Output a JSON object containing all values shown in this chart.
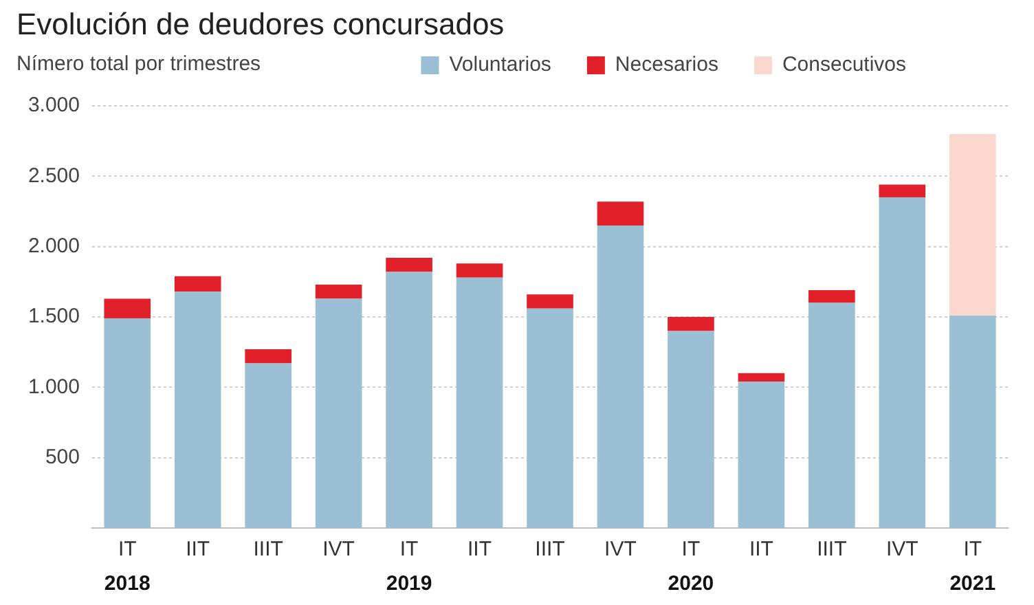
{
  "chart_data": {
    "type": "bar",
    "title": "Evolución de deudores concursados",
    "subtitle": "Nímero total por trimestres",
    "categories": [
      "IT\n2018",
      "IIT",
      "IIIT",
      "IVT",
      "IT\n2019",
      "IIT",
      "IIIT",
      "IVT",
      "IT\n2020",
      "IIT",
      "IIIT",
      "IVT",
      "IT\n2021"
    ],
    "stacked": true,
    "series": [
      {
        "name": "Voluntarios",
        "color": "#9bbfd5",
        "values": [
          1490,
          1680,
          1170,
          1630,
          1820,
          1780,
          1560,
          2150,
          1400,
          1040,
          1600,
          2350,
          1510
        ]
      },
      {
        "name": "Necesarios",
        "color": "#e2202a",
        "values": [
          140,
          110,
          100,
          100,
          100,
          100,
          100,
          170,
          100,
          60,
          90,
          90,
          null
        ]
      },
      {
        "name": "Consecutivos",
        "color": "#fad8cd",
        "values": [
          null,
          null,
          null,
          null,
          null,
          null,
          null,
          null,
          null,
          null,
          null,
          null,
          1290
        ]
      }
    ],
    "ylim": [
      0,
      3000
    ],
    "yticks": [
      500,
      {
        "value": 1000,
        "label": "1.000"
      },
      {
        "value": 1500,
        "label": "1.500"
      },
      {
        "value": 2000,
        "label": "2.000"
      },
      {
        "value": 2500,
        "label": "2.500"
      },
      {
        "value": 3000,
        "label": "3.000"
      }
    ],
    "grid": "y",
    "legend": "top right"
  }
}
